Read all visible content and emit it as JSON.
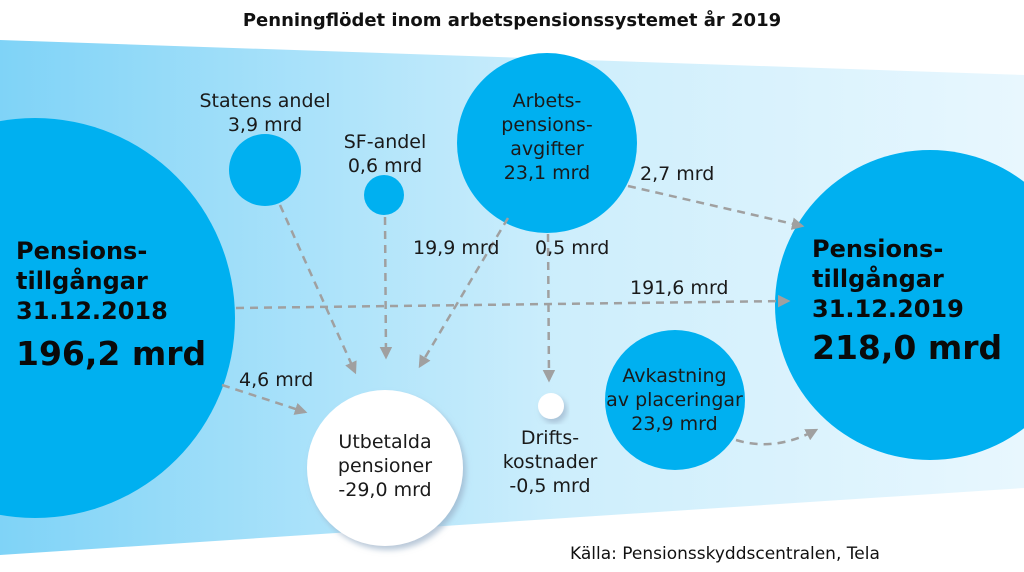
{
  "title": "Penningflödet inom arbetspensionssystemet år 2019",
  "source": "Källa: Pensionsskyddscentralen, Tela",
  "colors": {
    "bubble": "#00b0f0",
    "flow_left": "#7fd3f7",
    "flow_right": "#e8f7fe",
    "arrow": "#a0a0a0",
    "white_node": "#ffffff"
  },
  "nodes": {
    "start": {
      "line1": "Pensions-",
      "line2": "tillgångar",
      "line3": "31.12.2018",
      "value": "196,2 mrd"
    },
    "end": {
      "line1": "Pensions-",
      "line2": "tillgångar",
      "line3": "31.12.2019",
      "value": "218,0 mrd"
    },
    "state": {
      "line1": "Statens andel",
      "line2": "3,9 mrd"
    },
    "sf": {
      "line1": "SF-andel",
      "line2": "0,6 mrd"
    },
    "contributions": {
      "line1": "Arbets-",
      "line2": "pensions-",
      "line3": "avgifter",
      "line4": "23,1 mrd"
    },
    "paid": {
      "line1": "Utbetalda",
      "line2": "pensioner",
      "line3": "-29,0 mrd"
    },
    "operating": {
      "line1": "Drifts-",
      "line2": "kostnader",
      "line3": "-0,5 mrd"
    },
    "returns": {
      "line1": "Avkastning",
      "line2": "av placeringar",
      "line3": "23,9 mrd"
    }
  },
  "flows": {
    "contrib_to_end": "2,7 mrd",
    "contrib_to_paid": "19,9 mrd",
    "contrib_to_operating": "0,5 mrd",
    "start_to_end": "191,6 mrd",
    "start_to_paid": "4,6 mrd"
  }
}
